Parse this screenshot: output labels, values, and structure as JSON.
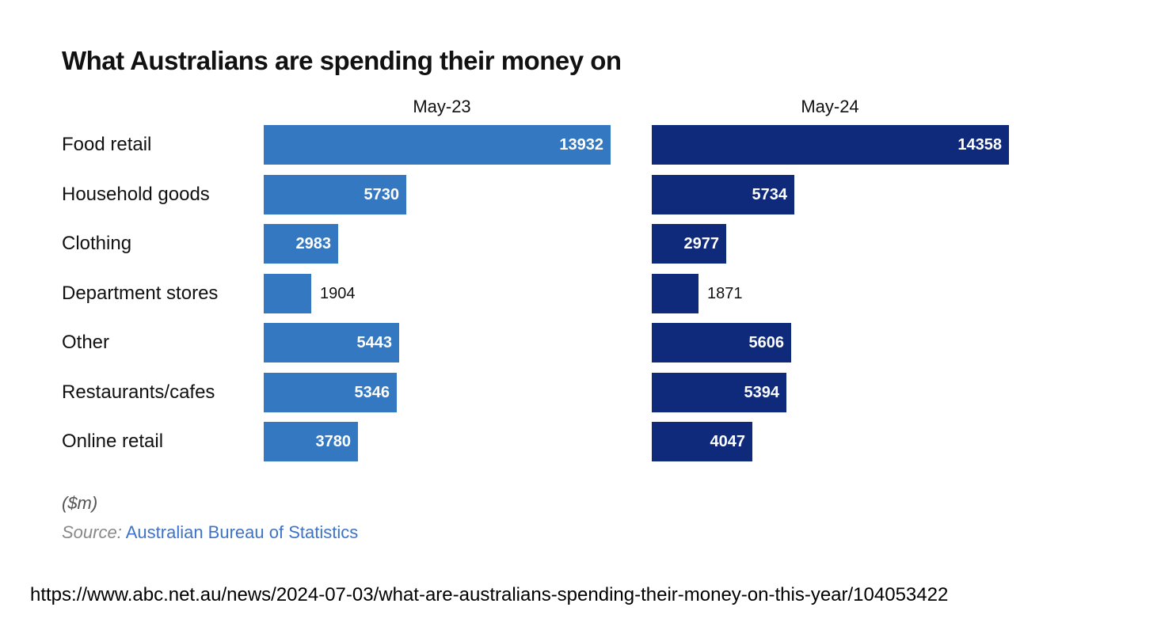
{
  "chart_data": {
    "type": "bar",
    "title": "What Australians are spending their money on",
    "categories": [
      "Food retail",
      "Household goods",
      "Clothing",
      "Department stores",
      "Other",
      "Restaurants/cafes",
      "Online retail"
    ],
    "series": [
      {
        "name": "May-23",
        "values": [
          13932,
          5730,
          2983,
          1904,
          5443,
          5346,
          3780
        ],
        "color": "#3478c2"
      },
      {
        "name": "May-24",
        "values": [
          14358,
          5734,
          2977,
          1871,
          5606,
          5394,
          4047
        ],
        "color": "#0f2a7a"
      }
    ],
    "unit_note": "($m)",
    "orientation": "horizontal",
    "layout": "small-multiples"
  },
  "source": {
    "prefix": "Source:",
    "name": "Australian Bureau of Statistics"
  },
  "url": "https://www.abc.net.au/news/2024-07-03/what-are-australians-spending-their-money-on-this-year/104053422"
}
